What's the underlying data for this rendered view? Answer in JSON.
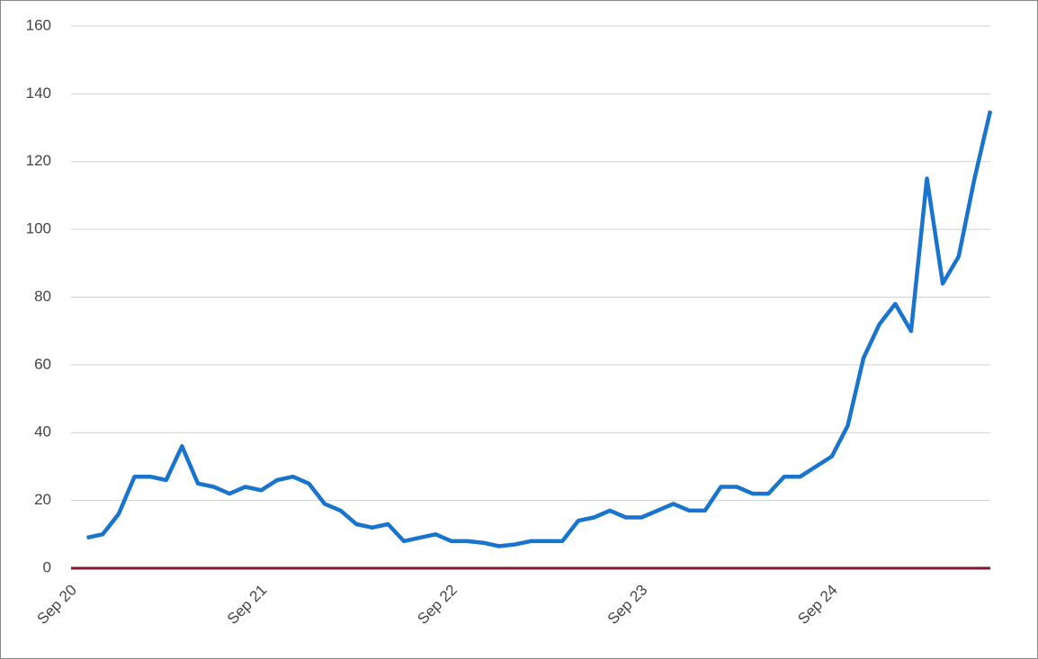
{
  "chart_data": {
    "type": "line",
    "categories": [
      "Sep 20",
      null,
      null,
      null,
      null,
      null,
      null,
      null,
      null,
      null,
      null,
      null,
      "Sep 21",
      null,
      null,
      null,
      null,
      null,
      null,
      null,
      null,
      null,
      null,
      null,
      "Sep 22",
      null,
      null,
      null,
      null,
      null,
      null,
      null,
      null,
      null,
      null,
      null,
      "Sep 23",
      null,
      null,
      null,
      null,
      null,
      null,
      null,
      null,
      null,
      null,
      null,
      "Sep 24",
      null,
      null,
      null,
      null,
      null,
      null,
      null,
      null,
      null,
      null
    ],
    "series": [
      {
        "color": "#1874cd",
        "values": [
          null,
          9,
          10,
          16,
          27,
          27,
          26,
          36,
          25,
          24,
          22,
          24,
          23,
          26,
          27,
          25,
          19,
          17,
          13,
          12,
          13,
          8,
          9,
          10,
          8,
          8,
          7.5,
          6.5,
          7,
          8,
          8,
          8,
          14,
          15,
          17,
          15,
          15,
          17,
          19,
          17,
          17,
          24,
          24,
          22,
          22,
          27,
          27,
          30,
          33,
          42,
          62,
          72,
          78,
          70,
          115,
          84,
          92,
          115,
          135
        ]
      }
    ],
    "ylim": [
      0,
      160
    ],
    "yticks": [
      0,
      20,
      40,
      60,
      80,
      100,
      120,
      140,
      160
    ],
    "grid": true,
    "axis_color": "#7b1c2e"
  }
}
